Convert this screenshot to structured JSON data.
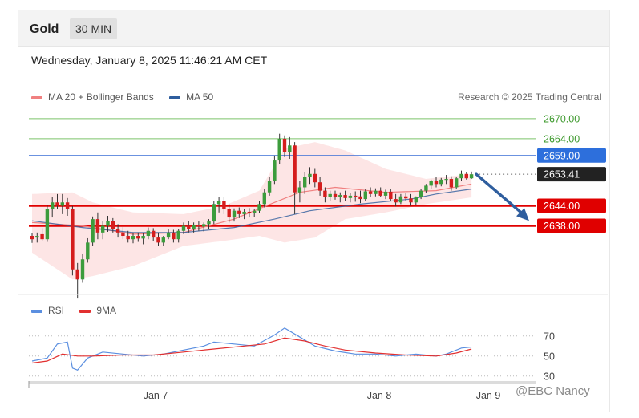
{
  "header": {
    "instrument": "Gold",
    "interval": "30 MIN"
  },
  "timestamp": "Wednesday, January 8, 2025 11:46:21 AM CET",
  "credit": "Research © 2025 Trading Central",
  "watermark": "@EBC Nancy",
  "colors": {
    "bull": "#3c9c3c",
    "bear": "#d51d1d",
    "ma20": "#f08080",
    "ma50": "#2f5e9e",
    "band": "#fde0e0",
    "green_level": "#7cc36a",
    "blue_level": "#3a6fd6",
    "red_level": "#e00000",
    "rsi": "#5b8fe0",
    "rsi_ma": "#e23030"
  },
  "chart_data": [
    {
      "type": "candlestick",
      "legend": [
        {
          "name": "MA 20 + Bollinger Bands",
          "color": "#f08080"
        },
        {
          "name": "MA 50",
          "color": "#2f5e9e"
        }
      ],
      "legend_placement": "top-left",
      "ylim": [
        2618,
        2675
      ],
      "x_ticks": [
        "Jan 7",
        "Jan 8",
        "Jan 9"
      ],
      "levels": [
        {
          "value": 2670.0,
          "label": "2670.00",
          "style": "green"
        },
        {
          "value": 2664.0,
          "label": "2664.00",
          "style": "green"
        },
        {
          "value": 2659.0,
          "label": "2659.00",
          "style": "blue"
        },
        {
          "value": 2653.41,
          "label": "2653.41",
          "style": "current"
        },
        {
          "value": 2644.0,
          "label": "2644.00",
          "style": "red"
        },
        {
          "value": 2638.0,
          "label": "2638.00",
          "style": "red"
        }
      ],
      "forecast_arrow": {
        "from_value": 2653.4,
        "to_value": 2639.0,
        "direction": "down"
      },
      "candles_ohlc": [
        [
          2635.0,
          2635.8,
          2632.9,
          2634.0
        ],
        [
          2634.5,
          2636.0,
          2633.0,
          2635.0
        ],
        [
          2635.5,
          2637.3,
          2633.5,
          2634.0
        ],
        [
          2634.0,
          2644.3,
          2633.2,
          2643.0
        ],
        [
          2643.0,
          2646.5,
          2640.5,
          2645.0
        ],
        [
          2645.0,
          2647.5,
          2643.0,
          2644.0
        ],
        [
          2644.0,
          2647.5,
          2641.5,
          2645.0
        ],
        [
          2645.0,
          2646.3,
          2641.0,
          2643.0
        ],
        [
          2643.0,
          2643.9,
          2623.2,
          2625.0
        ],
        [
          2625.0,
          2626.9,
          2616.3,
          2622.0
        ],
        [
          2622.0,
          2629.5,
          2621.0,
          2628.0
        ],
        [
          2628.0,
          2634.3,
          2627.0,
          2633.0
        ],
        [
          2633.0,
          2640.8,
          2632.0,
          2640.0
        ],
        [
          2640.0,
          2642.0,
          2634.0,
          2636.0
        ],
        [
          2636.0,
          2639.3,
          2634.0,
          2638.0
        ],
        [
          2638.0,
          2641.0,
          2636.2,
          2639.5
        ],
        [
          2639.5,
          2640.3,
          2636.0,
          2637.0
        ],
        [
          2637.0,
          2638.5,
          2634.5,
          2636.0
        ],
        [
          2636.0,
          2637.6,
          2634.0,
          2635.0
        ],
        [
          2635.0,
          2636.5,
          2633.0,
          2634.0
        ],
        [
          2634.0,
          2636.0,
          2632.8,
          2635.0
        ],
        [
          2635.0,
          2636.0,
          2633.2,
          2634.2
        ],
        [
          2634.2,
          2635.8,
          2632.5,
          2635.0
        ],
        [
          2635.0,
          2637.5,
          2634.0,
          2636.5
        ],
        [
          2636.5,
          2637.3,
          2633.5,
          2634.5
        ],
        [
          2634.5,
          2636.0,
          2632.0,
          2633.0
        ],
        [
          2633.0,
          2635.0,
          2632.0,
          2634.5
        ],
        [
          2634.5,
          2636.9,
          2634.0,
          2636.0
        ],
        [
          2636.0,
          2636.8,
          2633.0,
          2634.0
        ],
        [
          2634.0,
          2637.0,
          2633.0,
          2636.5
        ],
        [
          2636.5,
          2639.0,
          2635.5,
          2638.0
        ],
        [
          2638.0,
          2639.5,
          2636.0,
          2637.0
        ],
        [
          2637.0,
          2639.0,
          2636.0,
          2638.2
        ],
        [
          2638.2,
          2639.3,
          2636.5,
          2637.8
        ],
        [
          2637.8,
          2639.0,
          2636.3,
          2638.5
        ],
        [
          2638.5,
          2640.0,
          2637.0,
          2639.3
        ],
        [
          2639.3,
          2645.5,
          2638.5,
          2644.5
        ],
        [
          2644.5,
          2646.6,
          2642.0,
          2645.5
        ],
        [
          2645.5,
          2646.5,
          2641.5,
          2643.0
        ],
        [
          2643.0,
          2644.5,
          2639.0,
          2640.5
        ],
        [
          2640.5,
          2643.2,
          2639.3,
          2642.5
        ],
        [
          2642.5,
          2643.5,
          2640.3,
          2641.5
        ],
        [
          2641.5,
          2643.0,
          2640.0,
          2642.2
        ],
        [
          2642.2,
          2643.3,
          2640.5,
          2641.8
        ],
        [
          2641.8,
          2643.0,
          2640.6,
          2642.5
        ],
        [
          2642.5,
          2645.3,
          2641.8,
          2644.5
        ],
        [
          2644.5,
          2649.0,
          2643.5,
          2648.0
        ],
        [
          2648.0,
          2652.5,
          2647.0,
          2651.5
        ],
        [
          2651.5,
          2659.0,
          2650.5,
          2657.5
        ],
        [
          2657.5,
          2665.5,
          2656.5,
          2664.0
        ],
        [
          2664.0,
          2665.0,
          2658.5,
          2660.0
        ],
        [
          2660.0,
          2664.5,
          2658.0,
          2662.0
        ],
        [
          2662.0,
          2663.0,
          2641.5,
          2648.0
        ],
        [
          2648.0,
          2651.5,
          2645.0,
          2649.5
        ],
        [
          2649.5,
          2654.0,
          2647.5,
          2652.5
        ],
        [
          2652.5,
          2655.5,
          2650.5,
          2653.5
        ],
        [
          2653.5,
          2655.0,
          2649.5,
          2651.0
        ],
        [
          2651.0,
          2652.5,
          2647.0,
          2648.5
        ],
        [
          2648.5,
          2649.5,
          2645.0,
          2646.5
        ],
        [
          2646.5,
          2648.5,
          2645.5,
          2647.5
        ],
        [
          2647.5,
          2648.5,
          2645.8,
          2646.5
        ],
        [
          2646.5,
          2648.0,
          2645.0,
          2647.2
        ],
        [
          2647.2,
          2648.5,
          2645.5,
          2646.3
        ],
        [
          2646.3,
          2647.8,
          2645.0,
          2647.0
        ],
        [
          2647.0,
          2648.3,
          2645.2,
          2646.8
        ],
        [
          2646.8,
          2648.5,
          2644.8,
          2646.0
        ],
        [
          2646.0,
          2649.0,
          2645.5,
          2648.3
        ],
        [
          2648.3,
          2649.5,
          2646.5,
          2647.5
        ],
        [
          2647.5,
          2649.2,
          2646.8,
          2648.5
        ],
        [
          2648.5,
          2649.5,
          2646.5,
          2647.0
        ],
        [
          2647.0,
          2648.8,
          2646.0,
          2648.2
        ],
        [
          2648.2,
          2649.0,
          2645.3,
          2646.0
        ],
        [
          2646.0,
          2647.5,
          2643.8,
          2645.0
        ],
        [
          2645.0,
          2647.5,
          2644.5,
          2646.8
        ],
        [
          2646.8,
          2647.8,
          2645.5,
          2646.2
        ],
        [
          2646.2,
          2647.5,
          2644.0,
          2645.0
        ],
        [
          2645.0,
          2646.8,
          2644.3,
          2646.5
        ],
        [
          2646.5,
          2649.0,
          2646.0,
          2648.5
        ],
        [
          2648.5,
          2650.5,
          2647.8,
          2650.0
        ],
        [
          2650.0,
          2651.8,
          2649.0,
          2651.3
        ],
        [
          2651.3,
          2652.6,
          2649.5,
          2650.5
        ],
        [
          2650.5,
          2652.3,
          2649.8,
          2651.8
        ],
        [
          2651.8,
          2653.2,
          2650.5,
          2652.0
        ],
        [
          2652.0,
          2652.8,
          2648.5,
          2649.5
        ],
        [
          2649.5,
          2652.5,
          2649.0,
          2652.2
        ],
        [
          2652.2,
          2654.5,
          2651.5,
          2653.5
        ],
        [
          2653.5,
          2654.0,
          2651.8,
          2652.2
        ],
        [
          2652.2,
          2654.2,
          2652.0,
          2653.4
        ]
      ],
      "ma20": [
        [
          0,
          2639.0
        ],
        [
          10,
          2638.0
        ],
        [
          20,
          2635.5
        ],
        [
          30,
          2636.0
        ],
        [
          40,
          2640.0
        ],
        [
          48,
          2645.0
        ],
        [
          53,
          2648.0
        ],
        [
          60,
          2649.5
        ],
        [
          70,
          2648.0
        ],
        [
          80,
          2648.5
        ],
        [
          87,
          2650.5
        ]
      ],
      "ma50": [
        [
          0,
          2639.5
        ],
        [
          10,
          2637.5
        ],
        [
          20,
          2636.0
        ],
        [
          30,
          2636.0
        ],
        [
          40,
          2637.5
        ],
        [
          48,
          2640.0
        ],
        [
          55,
          2642.5
        ],
        [
          65,
          2644.5
        ],
        [
          75,
          2646.0
        ],
        [
          80,
          2647.5
        ],
        [
          87,
          2649.0
        ]
      ],
      "bb_upper": [
        [
          0,
          2647.5
        ],
        [
          8,
          2648.0
        ],
        [
          12,
          2645.0
        ],
        [
          20,
          2642.0
        ],
        [
          30,
          2641.5
        ],
        [
          38,
          2644.0
        ],
        [
          45,
          2648.5
        ],
        [
          50,
          2661.0
        ],
        [
          56,
          2663.0
        ],
        [
          62,
          2660.5
        ],
        [
          70,
          2655.0
        ],
        [
          78,
          2652.0
        ],
        [
          87,
          2653.5
        ]
      ],
      "bb_lower": [
        [
          0,
          2630.0
        ],
        [
          8,
          2622.0
        ],
        [
          12,
          2623.0
        ],
        [
          20,
          2626.0
        ],
        [
          30,
          2632.0
        ],
        [
          38,
          2633.5
        ],
        [
          45,
          2635.0
        ],
        [
          50,
          2633.0
        ],
        [
          56,
          2634.5
        ],
        [
          62,
          2640.0
        ],
        [
          70,
          2642.0
        ],
        [
          78,
          2644.5
        ],
        [
          87,
          2646.5
        ]
      ]
    },
    {
      "type": "line",
      "legend": [
        {
          "name": "RSI",
          "color": "#5b8fe0"
        },
        {
          "name": "9MA",
          "color": "#e23030"
        }
      ],
      "y_ticks": [
        30,
        50,
        70
      ],
      "ylim": [
        25,
        85
      ],
      "rsi": [
        [
          0,
          45
        ],
        [
          3,
          48
        ],
        [
          5,
          62
        ],
        [
          7,
          64
        ],
        [
          8,
          38
        ],
        [
          9,
          36
        ],
        [
          11,
          48
        ],
        [
          14,
          54
        ],
        [
          18,
          52
        ],
        [
          22,
          50
        ],
        [
          26,
          52
        ],
        [
          30,
          56
        ],
        [
          34,
          60
        ],
        [
          36,
          64
        ],
        [
          40,
          62
        ],
        [
          44,
          60
        ],
        [
          48,
          71
        ],
        [
          50,
          78
        ],
        [
          52,
          72
        ],
        [
          56,
          60
        ],
        [
          60,
          55
        ],
        [
          64,
          52
        ],
        [
          68,
          52
        ],
        [
          72,
          50
        ],
        [
          76,
          52
        ],
        [
          80,
          50
        ],
        [
          82,
          52
        ],
        [
          85,
          58
        ],
        [
          87,
          59
        ]
      ],
      "rsi_ma": [
        [
          0,
          43
        ],
        [
          3,
          45
        ],
        [
          6,
          52
        ],
        [
          9,
          50
        ],
        [
          12,
          50
        ],
        [
          18,
          51
        ],
        [
          24,
          51
        ],
        [
          30,
          54
        ],
        [
          36,
          57
        ],
        [
          42,
          60
        ],
        [
          46,
          62
        ],
        [
          50,
          68
        ],
        [
          54,
          65
        ],
        [
          58,
          60
        ],
        [
          62,
          56
        ],
        [
          68,
          53
        ],
        [
          74,
          51
        ],
        [
          80,
          50
        ],
        [
          84,
          53
        ],
        [
          87,
          57
        ]
      ]
    }
  ]
}
